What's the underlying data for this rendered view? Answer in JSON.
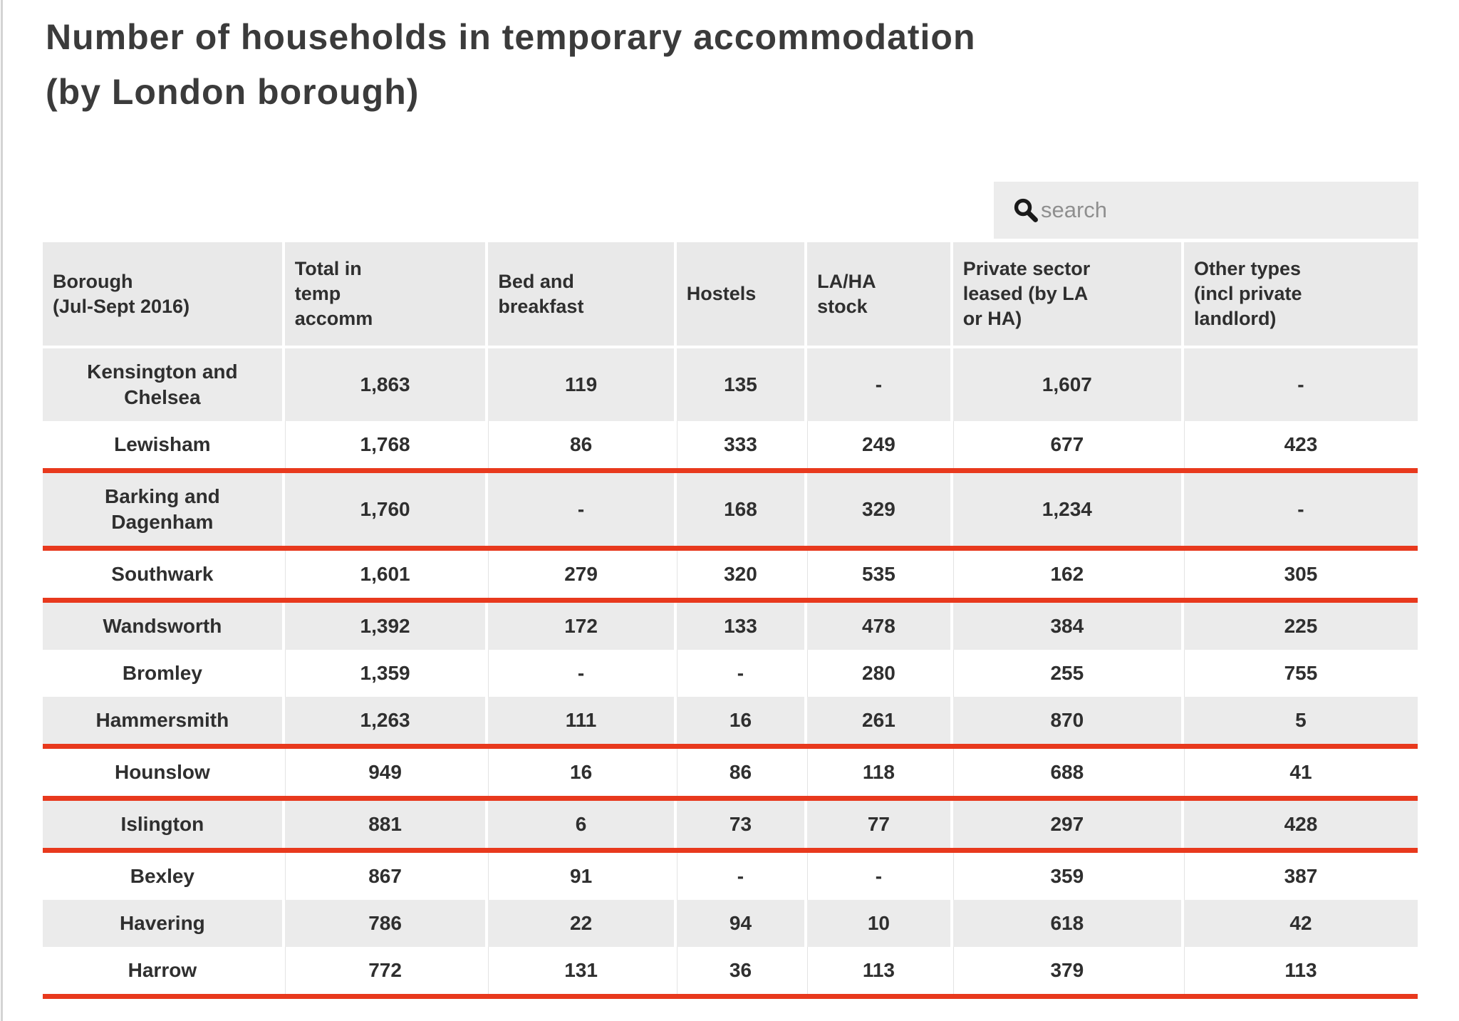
{
  "header": {
    "title_line1": "Number of households in temporary accommodation",
    "title_line2": "(by London borough)"
  },
  "search": {
    "icon": "magnifier-search-icon",
    "placeholder": "search",
    "value": ""
  },
  "colors": {
    "red_underline": "#e8391d",
    "row_shade_gray": "#ebebeb",
    "header_gray": "#e9e9e9",
    "search_bg": "#ececec",
    "text": "#2f2f2f",
    "placeholder_text": "#8f8f8f",
    "left_edge_line": "#d4d4d4"
  },
  "chart_data": {
    "type": "table",
    "title": "Number of households in temporary accommodation (by London borough)",
    "columns": [
      "Borough\n(Jul-Sept 2016)",
      "Total in\ntemp\naccomm",
      "Bed and\nbreakfast",
      "Hostels",
      "LA/HA\nstock",
      "Private sector\nleased (by LA\nor HA)",
      "Other types\n(incl private\nlandlord)"
    ],
    "rows": [
      {
        "borough": "Kensington and\nChelsea",
        "values": [
          "1,863",
          "119",
          "135",
          "-",
          "1,607",
          "-"
        ],
        "red_underline": false
      },
      {
        "borough": "Lewisham",
        "values": [
          "1,768",
          "86",
          "333",
          "249",
          "677",
          "423"
        ],
        "red_underline": true
      },
      {
        "borough": "Barking and\nDagenham",
        "values": [
          "1,760",
          "-",
          "168",
          "329",
          "1,234",
          "-"
        ],
        "red_underline": true
      },
      {
        "borough": "Southwark",
        "values": [
          "1,601",
          "279",
          "320",
          "535",
          "162",
          "305"
        ],
        "red_underline": true
      },
      {
        "borough": "Wandsworth",
        "values": [
          "1,392",
          "172",
          "133",
          "478",
          "384",
          "225"
        ],
        "red_underline": false
      },
      {
        "borough": "Bromley",
        "values": [
          "1,359",
          "-",
          "-",
          "280",
          "255",
          "755"
        ],
        "red_underline": false
      },
      {
        "borough": "Hammersmith",
        "values": [
          "1,263",
          "111",
          "16",
          "261",
          "870",
          "5"
        ],
        "red_underline": true
      },
      {
        "borough": "Hounslow",
        "values": [
          "949",
          "16",
          "86",
          "118",
          "688",
          "41"
        ],
        "red_underline": true
      },
      {
        "borough": "Islington",
        "values": [
          "881",
          "6",
          "73",
          "77",
          "297",
          "428"
        ],
        "red_underline": true
      },
      {
        "borough": "Bexley",
        "values": [
          "867",
          "91",
          "-",
          "-",
          "359",
          "387"
        ],
        "red_underline": false
      },
      {
        "borough": "Havering",
        "values": [
          "786",
          "22",
          "94",
          "10",
          "618",
          "42"
        ],
        "red_underline": false
      },
      {
        "borough": "Harrow",
        "values": [
          "772",
          "131",
          "36",
          "113",
          "379",
          "113"
        ],
        "red_underline": true
      }
    ]
  }
}
